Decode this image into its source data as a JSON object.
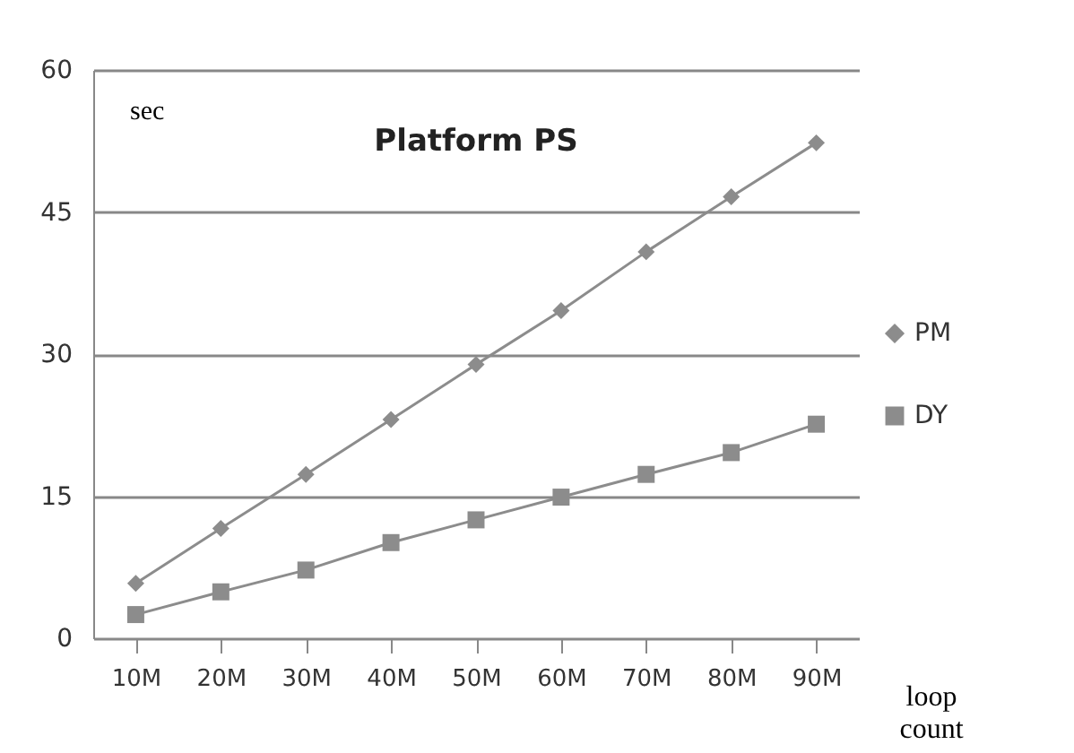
{
  "chart_data": {
    "type": "line",
    "title": "Platform PS",
    "ylabel": "sec",
    "xlabel": "loop count",
    "categories": [
      "10M",
      "20M",
      "30M",
      "40M",
      "50M",
      "60M",
      "70M",
      "80M",
      "90M"
    ],
    "series": [
      {
        "name": "PM",
        "color": "#8c8c8c",
        "marker": "diamond",
        "values": [
          5.8,
          11.6,
          17.3,
          23.1,
          28.9,
          34.6,
          40.8,
          46.6,
          52.3
        ]
      },
      {
        "name": "DY",
        "color": "#8c8c8c",
        "marker": "square",
        "values": [
          2.5,
          4.9,
          7.2,
          10.1,
          12.5,
          14.9,
          17.3,
          19.6,
          22.6
        ]
      }
    ],
    "ylim": [
      0,
      60
    ],
    "yticks": [
      0,
      15,
      30,
      45,
      60
    ],
    "grid": "y",
    "legend": "right"
  }
}
